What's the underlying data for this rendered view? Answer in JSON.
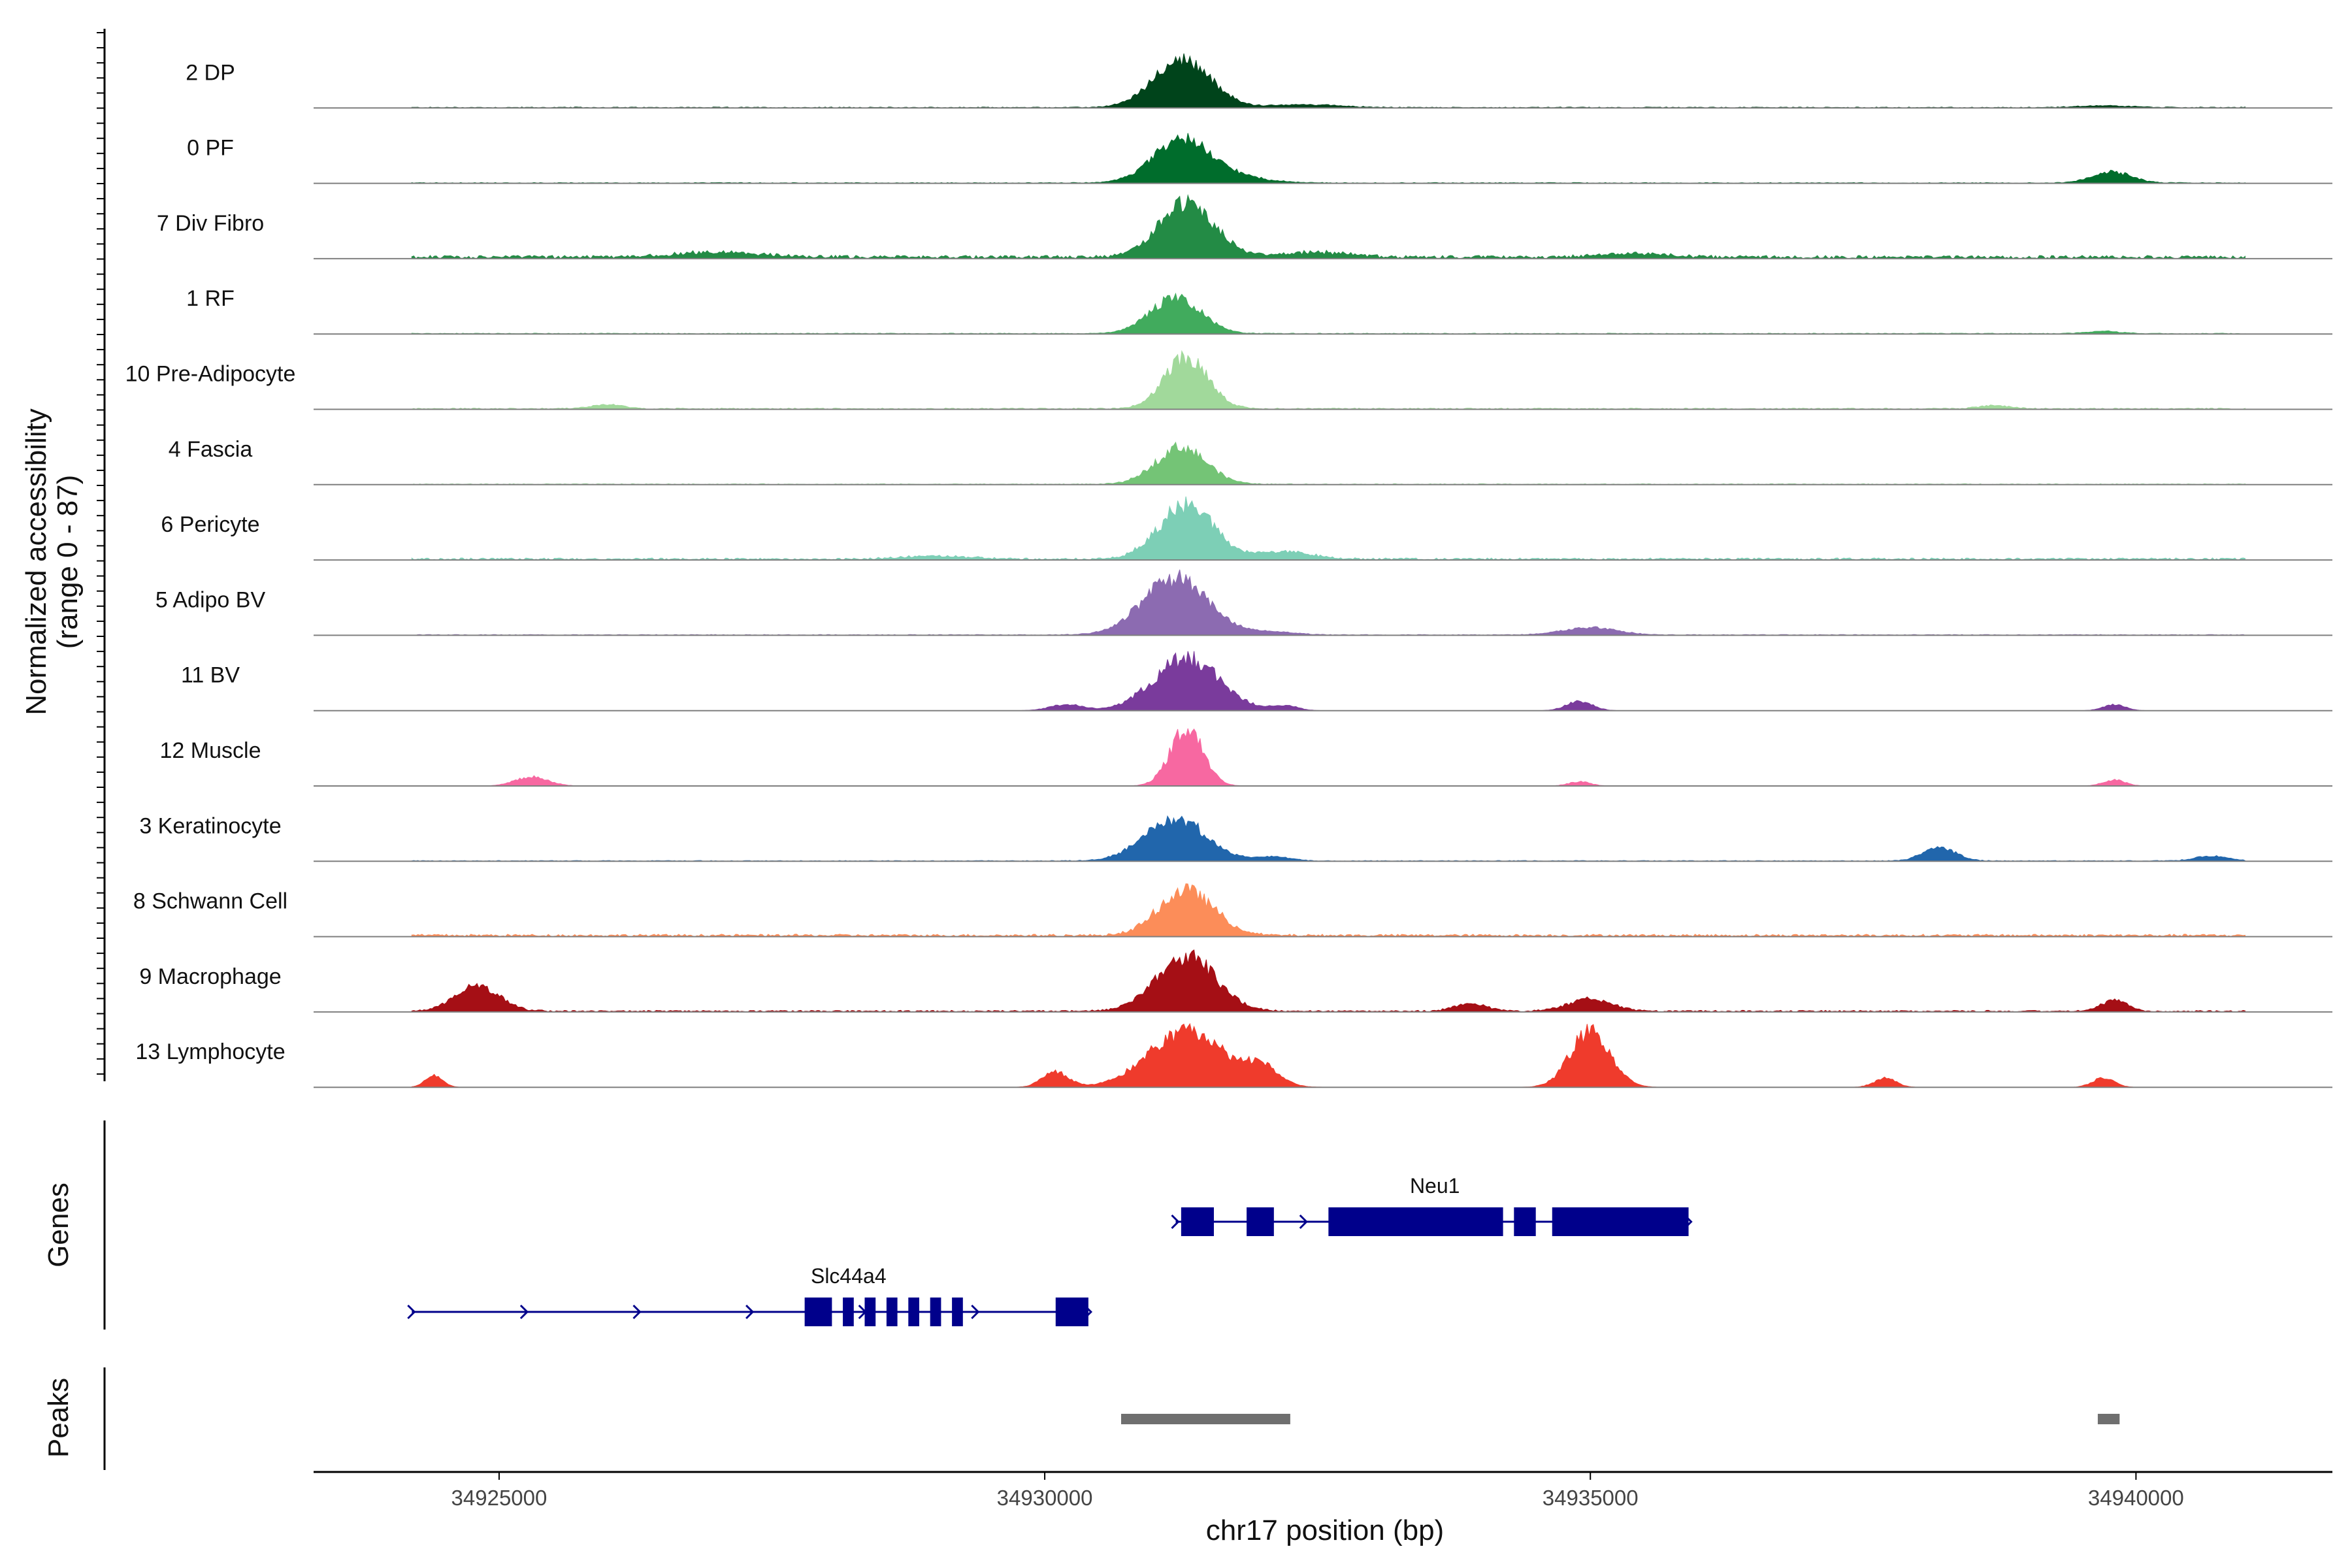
{
  "chart_data": {
    "type": "area",
    "title": "",
    "xlabel": "chr17 position (bp)",
    "ylabel_line1": "Normalized accessibility",
    "ylabel_line2": "(range 0 - 87)",
    "ylim": [
      0,
      87
    ],
    "xlim": [
      34923300,
      34941800
    ],
    "x_ticks": [
      34925000,
      34930000,
      34935000,
      34940000
    ],
    "x_tick_labels": [
      "34925000",
      "34930000",
      "34935000",
      "34940000"
    ],
    "grid": false,
    "series": [
      {
        "name": "2 DP",
        "color": "#00441b",
        "baseline": 1.2,
        "peaks": [
          [
            34931260,
            260,
            0.8
          ],
          [
            34932400,
            300,
            0.05
          ],
          [
            34939700,
            250,
            0.03
          ]
        ]
      },
      {
        "name": "0 PF",
        "color": "#006d2c",
        "baseline": 1.0,
        "peaks": [
          [
            34931250,
            260,
            0.7
          ],
          [
            34931700,
            300,
            0.1
          ],
          [
            34939780,
            180,
            0.18
          ]
        ]
      },
      {
        "name": "7 Div Fibro",
        "color": "#238b45",
        "baseline": 4.0,
        "peaks": [
          [
            34931300,
            250,
            0.92
          ],
          [
            34927000,
            400,
            0.08
          ],
          [
            34932500,
            300,
            0.08
          ],
          [
            34935400,
            300,
            0.06
          ]
        ]
      },
      {
        "name": "1 RF",
        "color": "#41ab5d",
        "baseline": 1.0,
        "peaks": [
          [
            34931200,
            230,
            0.6
          ],
          [
            34939700,
            150,
            0.04
          ]
        ]
      },
      {
        "name": "10 Pre-Adipocyte",
        "color": "#a1d99b",
        "baseline": 1.5,
        "peaks": [
          [
            34931300,
            200,
            0.85
          ],
          [
            34926000,
            150,
            0.07
          ],
          [
            34938700,
            150,
            0.05
          ]
        ]
      },
      {
        "name": "4 Fascia",
        "color": "#74c476",
        "baseline": 1.0,
        "peaks": [
          [
            34931250,
            230,
            0.62
          ]
        ]
      },
      {
        "name": "6 Pericyte",
        "color": "#7dcfb6",
        "baseline": 2.5,
        "peaks": [
          [
            34931300,
            250,
            0.9
          ],
          [
            34932200,
            250,
            0.12
          ],
          [
            34929000,
            300,
            0.05
          ]
        ]
      },
      {
        "name": "5 Adipo BV",
        "color": "#8c6bb1",
        "baseline": 1.0,
        "peaks": [
          [
            34931200,
            300,
            0.95
          ],
          [
            34935000,
            250,
            0.12
          ],
          [
            34932100,
            200,
            0.05
          ]
        ]
      },
      {
        "name": "11 BV",
        "color": "#7a3b9c",
        "baseline": 0.0,
        "peaks": [
          [
            34931300,
            300,
            0.88
          ],
          [
            34934900,
            120,
            0.15
          ],
          [
            34930200,
            150,
            0.1
          ],
          [
            34932200,
            120,
            0.08
          ],
          [
            34939800,
            100,
            0.1
          ]
        ]
      },
      {
        "name": "12 Muscle",
        "color": "#f768a1",
        "baseline": 0.0,
        "peaks": [
          [
            34931300,
            150,
            0.95
          ],
          [
            34925300,
            150,
            0.15
          ],
          [
            34934900,
            100,
            0.07
          ],
          [
            34939800,
            100,
            0.1
          ]
        ]
      },
      {
        "name": "3 Keratinocyte",
        "color": "#2166ac",
        "baseline": 1.0,
        "peaks": [
          [
            34931200,
            280,
            0.7
          ],
          [
            34938200,
            150,
            0.22
          ],
          [
            34940700,
            150,
            0.08
          ],
          [
            34932100,
            150,
            0.07
          ]
        ]
      },
      {
        "name": "8 Schwann Cell",
        "color": "#fc8d59",
        "baseline": 3.0,
        "peaks": [
          [
            34931300,
            250,
            0.75
          ]
        ]
      },
      {
        "name": "9 Macrophage",
        "color": "#a50f15",
        "baseline": 2.0,
        "peaks": [
          [
            34931300,
            270,
            0.92
          ],
          [
            34924800,
            200,
            0.42
          ],
          [
            34935000,
            200,
            0.2
          ],
          [
            34933900,
            150,
            0.12
          ],
          [
            34939800,
            120,
            0.18
          ]
        ]
      },
      {
        "name": "13 Lymphocyte",
        "color": "#ef3b2c",
        "baseline": 0.0,
        "peaks": [
          [
            34931300,
            350,
            0.92
          ],
          [
            34935000,
            180,
            0.95
          ],
          [
            34930100,
            120,
            0.25
          ],
          [
            34932000,
            150,
            0.3
          ],
          [
            34924400,
            80,
            0.2
          ],
          [
            34937700,
            100,
            0.15
          ],
          [
            34939700,
            100,
            0.15
          ]
        ]
      }
    ],
    "genes": [
      {
        "name": "Neu1",
        "strand": "+",
        "start": 34931200,
        "end": 34935900,
        "exons": [
          [
            34931250,
            34931550
          ],
          [
            34931850,
            34932100
          ],
          [
            34932600,
            34934200
          ],
          [
            34934300,
            34934500
          ],
          [
            34934650,
            34935900
          ]
        ]
      },
      {
        "name": "Slc44a4",
        "strand": "+",
        "start": 34924200,
        "end": 34930400,
        "exons": [
          [
            34927800,
            34928050
          ],
          [
            34928150,
            34928250
          ],
          [
            34928350,
            34928450
          ],
          [
            34928550,
            34928650
          ],
          [
            34928750,
            34928850
          ],
          [
            34928950,
            34929050
          ],
          [
            34929150,
            34929250
          ],
          [
            34930100,
            34930400
          ]
        ]
      }
    ],
    "peaks_track": [
      [
        34930700,
        34932250
      ],
      [
        34939650,
        34939850
      ]
    ],
    "panels": {
      "genes_title": "Genes",
      "peaks_title": "Peaks"
    },
    "colors": {
      "axis": "#000000",
      "baseline": "#7f7f7f",
      "gene": "#00008b",
      "peak_bar": "#6f6f6f"
    }
  }
}
